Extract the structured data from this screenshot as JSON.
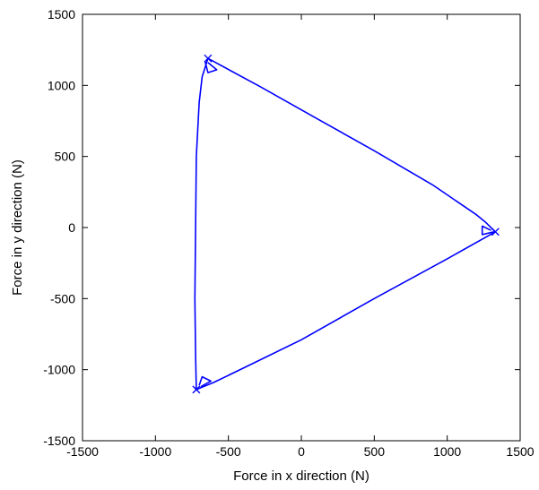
{
  "chart_data": {
    "type": "line",
    "title": "",
    "xlabel": "Force in x direction (N)",
    "ylabel": "Force in y direction (N)",
    "xlim": [
      -1500,
      1500
    ],
    "ylim": [
      -1500,
      1500
    ],
    "xticks": [
      -1500,
      -1000,
      -500,
      0,
      500,
      1000,
      1500
    ],
    "yticks": [
      -1500,
      -1000,
      -500,
      0,
      500,
      1000,
      1500
    ],
    "xtick_labels": [
      "-1500",
      "-1000",
      "-500",
      "0",
      "500",
      "1000",
      "1500"
    ],
    "ytick_labels": [
      "-1500",
      "-1000",
      "-500",
      "0",
      "500",
      "1000",
      "1500"
    ],
    "grid": false,
    "series": [
      {
        "color": "#0000ff",
        "points": [
          [
            -640,
            1190
          ],
          [
            -280,
            990
          ],
          [
            100,
            770
          ],
          [
            500,
            540
          ],
          [
            900,
            300
          ],
          [
            1200,
            90
          ],
          [
            1260,
            40
          ],
          [
            1330,
            -30
          ],
          [
            1000,
            -220
          ],
          [
            500,
            -500
          ],
          [
            0,
            -790
          ],
          [
            -400,
            -990
          ],
          [
            -600,
            -1090
          ],
          [
            -720,
            -1140
          ],
          [
            -725,
            -900
          ],
          [
            -730,
            -500
          ],
          [
            -725,
            0
          ],
          [
            -720,
            500
          ],
          [
            -700,
            880
          ],
          [
            -680,
            1060
          ],
          [
            -640,
            1190
          ]
        ]
      },
      {
        "color": "#0000ff",
        "points": [
          [
            -660,
            1170
          ],
          [
            -640,
            1090
          ],
          [
            -580,
            1110
          ],
          [
            -640,
            1160
          ]
        ]
      },
      {
        "color": "#0000ff",
        "points": [
          [
            1320,
            -30
          ],
          [
            1240,
            -50
          ],
          [
            1240,
            10
          ],
          [
            1300,
            -20
          ]
        ]
      },
      {
        "color": "#0000ff",
        "points": [
          [
            -700,
            -1110
          ],
          [
            -680,
            -1050
          ],
          [
            -620,
            -1080
          ],
          [
            -690,
            -1120
          ]
        ]
      }
    ],
    "markers": [
      {
        "x": -640,
        "y": 1190,
        "shape": "x",
        "color": "#0000ff"
      },
      {
        "x": 1330,
        "y": -30,
        "shape": "x",
        "color": "#0000ff"
      },
      {
        "x": -720,
        "y": -1140,
        "shape": "x",
        "color": "#0000ff"
      }
    ]
  }
}
